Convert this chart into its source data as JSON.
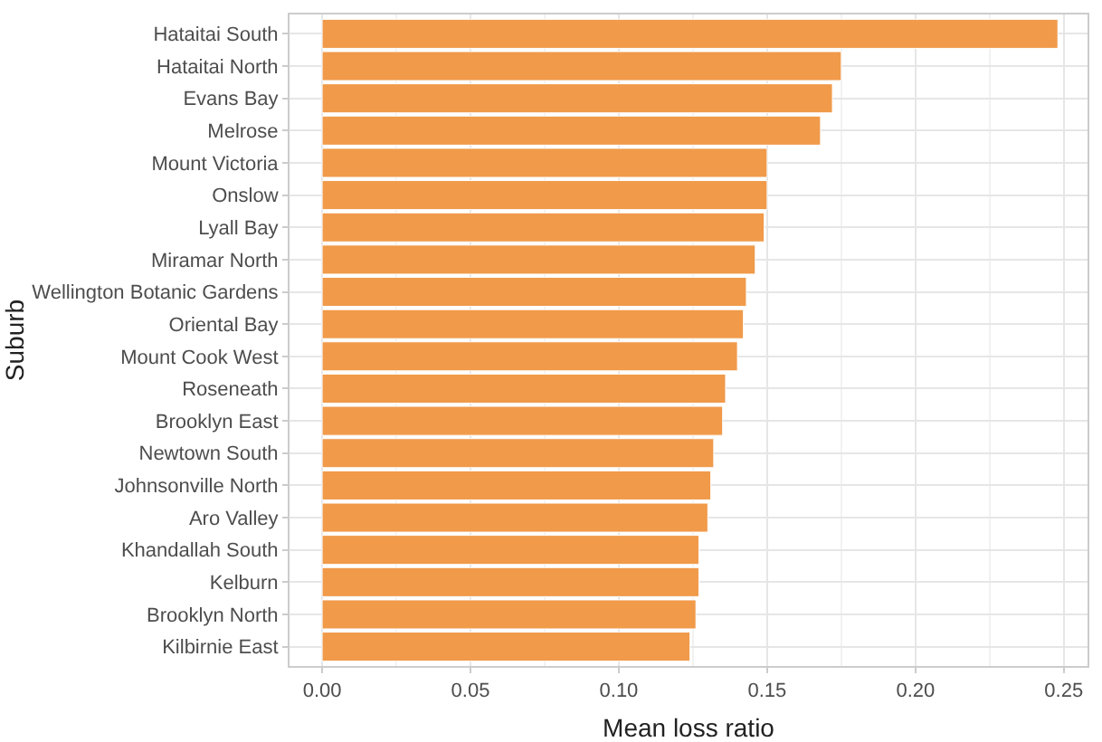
{
  "chart_data": {
    "type": "bar",
    "orientation": "horizontal",
    "xlabel": "Mean loss ratio",
    "ylabel": "Suburb",
    "categories": [
      "Hataitai South",
      "Hataitai North",
      "Evans Bay",
      "Melrose",
      "Mount Victoria",
      "Onslow",
      "Lyall Bay",
      "Miramar North",
      "Wellington Botanic Gardens",
      "Oriental Bay",
      "Mount Cook West",
      "Roseneath",
      "Brooklyn East",
      "Newtown South",
      "Johnsonville North",
      "Aro Valley",
      "Khandallah South",
      "Kelburn",
      "Brooklyn North",
      "Kilbirnie East"
    ],
    "values": [
      0.248,
      0.175,
      0.172,
      0.168,
      0.15,
      0.15,
      0.149,
      0.146,
      0.143,
      0.142,
      0.14,
      0.136,
      0.135,
      0.132,
      0.131,
      0.13,
      0.127,
      0.127,
      0.126,
      0.124
    ],
    "color": "#f09a4a",
    "xlim": [
      -0.011,
      0.258
    ],
    "xticks": [
      {
        "value": 0,
        "label": "0.00"
      },
      {
        "value": 0.05,
        "label": "0.05"
      },
      {
        "value": 0.1,
        "label": "0.10"
      },
      {
        "value": 0.15,
        "label": "0.15"
      },
      {
        "value": 0.2,
        "label": "0.20"
      },
      {
        "value": 0.25,
        "label": "0.25"
      }
    ],
    "grid": true,
    "legend": false
  }
}
